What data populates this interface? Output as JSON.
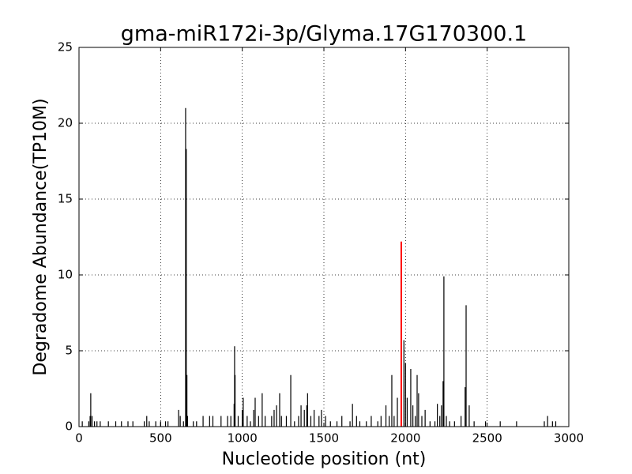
{
  "chart_data": {
    "type": "stem",
    "title": "gma-miR172i-3p/Glyma.17G170300.1",
    "x_label": "Nucleotide position (nt)",
    "y_label": "Degradome Abundance(TP10M)",
    "xlim": [
      0,
      3000
    ],
    "ylim": [
      0,
      25
    ],
    "xticks": [
      0,
      500,
      1000,
      1500,
      2000,
      2500,
      3000
    ],
    "yticks": [
      0,
      5,
      10,
      15,
      20,
      25
    ],
    "grid": true,
    "series": [
      {
        "color": "#000000",
        "x": [
          20,
          60,
          68,
          72,
          80,
          95,
          110,
          130,
          180,
          225,
          260,
          300,
          330,
          400,
          415,
          430,
          470,
          500,
          530,
          545,
          610,
          620,
          640,
          653,
          657,
          661,
          665,
          700,
          720,
          760,
          800,
          820,
          870,
          910,
          930,
          950,
          953,
          956,
          975,
          1000,
          1006,
          1030,
          1050,
          1070,
          1079,
          1100,
          1122,
          1140,
          1180,
          1195,
          1210,
          1229,
          1240,
          1270,
          1297,
          1320,
          1345,
          1360,
          1380,
          1395,
          1400,
          1420,
          1440,
          1470,
          1485,
          1510,
          1540,
          1580,
          1610,
          1660,
          1675,
          1700,
          1720,
          1760,
          1790,
          1830,
          1850,
          1880,
          1900,
          1916,
          1930,
          1950,
          1990,
          2000,
          2010,
          2032,
          2045,
          2060,
          2071,
          2080,
          2100,
          2120,
          2150,
          2180,
          2195,
          2210,
          2220,
          2230,
          2235,
          2250,
          2270,
          2300,
          2340,
          2365,
          2371,
          2390,
          2420,
          2490,
          2580,
          2680,
          2850,
          2870,
          2900,
          2920
        ],
        "values": [
          0.35,
          0.35,
          0.7,
          2.2,
          0.7,
          0.35,
          0.35,
          0.35,
          0.35,
          0.35,
          0.35,
          0.35,
          0.35,
          0.35,
          0.7,
          0.35,
          0.35,
          0.35,
          0.35,
          0.35,
          1.1,
          0.7,
          0.35,
          21.0,
          18.3,
          3.4,
          0.7,
          0.35,
          0.35,
          0.7,
          0.7,
          0.7,
          0.7,
          0.7,
          0.7,
          1.5,
          5.3,
          3.4,
          0.7,
          1.1,
          1.9,
          0.7,
          0.35,
          1.1,
          1.9,
          0.7,
          2.2,
          0.7,
          0.7,
          1.1,
          1.4,
          2.2,
          0.7,
          0.7,
          3.4,
          0.35,
          0.7,
          1.4,
          1.1,
          1.4,
          2.2,
          0.7,
          1.1,
          0.7,
          1.1,
          0.7,
          0.35,
          0.35,
          0.7,
          0.35,
          1.5,
          0.7,
          0.35,
          0.35,
          0.7,
          0.35,
          0.7,
          1.4,
          0.7,
          3.4,
          0.7,
          1.9,
          5.7,
          4.2,
          1.9,
          3.8,
          1.4,
          0.7,
          3.4,
          2.2,
          0.7,
          1.1,
          0.35,
          0.35,
          1.5,
          0.7,
          1.4,
          3.0,
          9.9,
          0.7,
          0.35,
          0.35,
          0.7,
          2.6,
          8.0,
          1.4,
          0.35,
          0.35,
          0.35,
          0.35,
          0.35,
          0.7,
          0.35,
          0.35
        ]
      },
      {
        "color": "#ff0000",
        "x": [
          1974
        ],
        "values": [
          12.2
        ]
      }
    ]
  }
}
